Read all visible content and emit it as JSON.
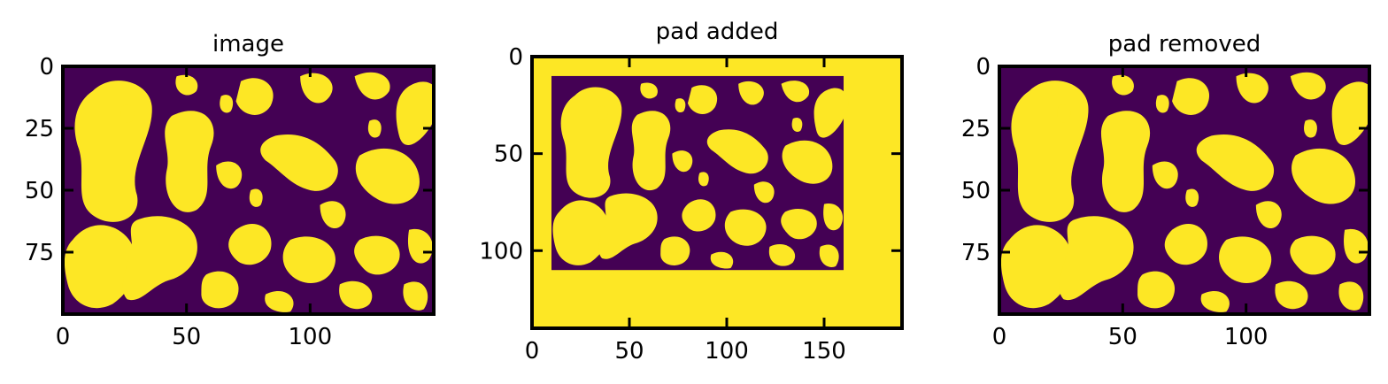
{
  "colors": {
    "background": "#440154",
    "foreground": "#fde725",
    "frame": "#000000"
  },
  "chart_data": [
    {
      "type": "heatmap",
      "title": "image",
      "pixel_values": "binary",
      "xlim": [
        0,
        150
      ],
      "ylim": [
        100,
        0
      ],
      "xticks": [
        0,
        50,
        100
      ],
      "yticks": [
        0,
        25,
        50,
        75
      ],
      "xtick_labels": [
        "0",
        "50",
        "100"
      ],
      "ytick_labels": [
        "0",
        "25",
        "50",
        "75"
      ],
      "tick_direction": "in",
      "content_rect": [
        0,
        0,
        150,
        100
      ]
    },
    {
      "type": "heatmap",
      "title": "pad added",
      "pixel_values": "binary",
      "xlim": [
        0,
        190
      ],
      "ylim": [
        140,
        0
      ],
      "xticks": [
        0,
        50,
        100,
        150
      ],
      "yticks": [
        0,
        50,
        100
      ],
      "xtick_labels": [
        "0",
        "50",
        "100",
        "150"
      ],
      "ytick_labels": [
        "0",
        "50",
        "100"
      ],
      "tick_direction": "in",
      "content_rect": [
        10,
        10,
        160,
        110
      ],
      "pad_value": "foreground"
    },
    {
      "type": "heatmap",
      "title": "pad removed",
      "pixel_values": "binary",
      "xlim": [
        0,
        150
      ],
      "ylim": [
        100,
        0
      ],
      "xticks": [
        0,
        50,
        100
      ],
      "yticks": [
        0,
        25,
        50,
        75
      ],
      "xtick_labels": [
        "0",
        "50",
        "100"
      ],
      "ytick_labels": [
        "0",
        "25",
        "50",
        "75"
      ],
      "tick_direction": "in",
      "content_rect": [
        0,
        0,
        150,
        100
      ]
    }
  ]
}
